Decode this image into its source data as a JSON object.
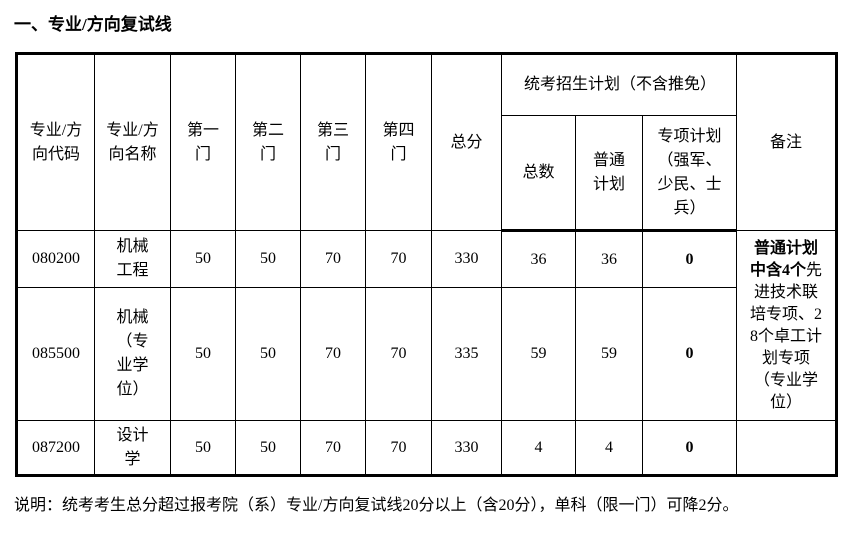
{
  "section_title": "一、专业/方向复试线",
  "table": {
    "headers": {
      "code": "专业/方向代码",
      "name": "专业/方向名称",
      "subject1": "第一门",
      "subject2": "第二门",
      "subject3": "第三门",
      "subject4": "第四门",
      "total": "总分",
      "plan_group": "统考招生计划（不含推免）",
      "plan_total": "总数",
      "plan_regular": "普通计划",
      "plan_special": "专项计划（强军、少民、士兵）",
      "remarks": "备注"
    },
    "rows": [
      {
        "code": "080200",
        "name": "机械工程",
        "s1": "50",
        "s2": "50",
        "s3": "70",
        "s4": "70",
        "total": "330",
        "plan_total": "36",
        "plan_regular": "36",
        "plan_special": "0"
      },
      {
        "code": "085500",
        "name": "机械（专业学位）",
        "s1": "50",
        "s2": "50",
        "s3": "70",
        "s4": "70",
        "total": "335",
        "plan_total": "59",
        "plan_regular": "59",
        "plan_special": "0"
      },
      {
        "code": "087200",
        "name": "设计学",
        "s1": "50",
        "s2": "50",
        "s3": "70",
        "s4": "70",
        "total": "330",
        "plan_total": "4",
        "plan_regular": "4",
        "plan_special": "0"
      }
    ],
    "remark_merged_bold": "普通计划中含4个",
    "remark_merged_rest": "先进技术联培专项、28个卓工计划专项（专业学位）",
    "remark_row3": ""
  },
  "note": "说明：统考考生总分超过报考院（系）专业/方向复试线20分以上（含20分），单科（限一门）可降2分。"
}
